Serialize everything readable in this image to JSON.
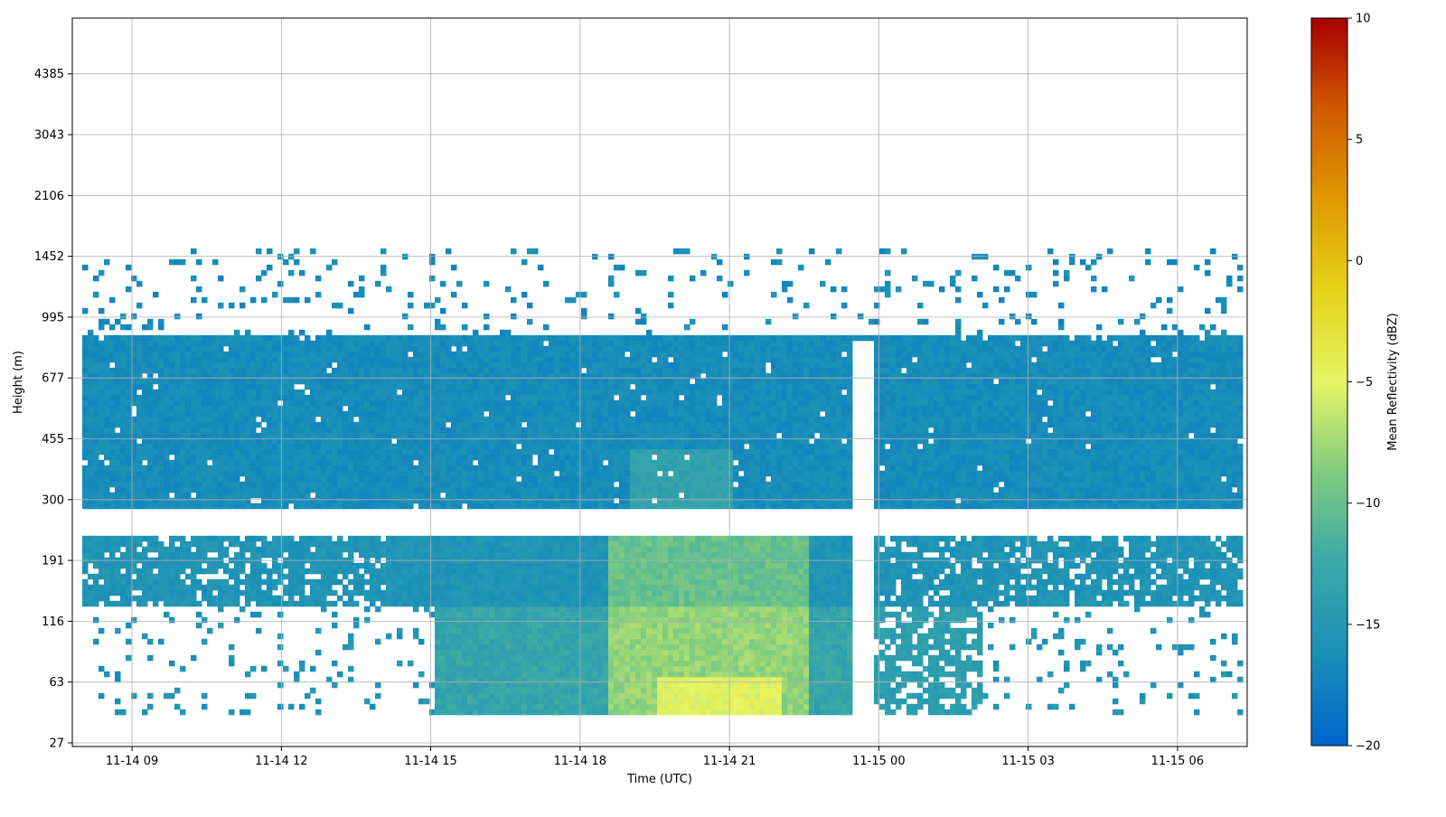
{
  "chart_data": {
    "type": "heatmap",
    "title": "",
    "xlabel": "Time (UTC)",
    "ylabel": "Height (m)",
    "x_ticks": [
      "11-14 09",
      "11-14 12",
      "11-14 15",
      "11-14 18",
      "11-14 21",
      "11-15 00",
      "11-15 03",
      "11-15 06"
    ],
    "x_tick_hours": [
      9,
      12,
      15,
      18,
      21,
      24,
      27,
      30
    ],
    "xlim_hours": [
      7.8,
      31.4
    ],
    "y_ticks": [
      "27",
      "63",
      "116",
      "191",
      "300",
      "455",
      "677",
      "995",
      "1452",
      "2106",
      "3043",
      "4385"
    ],
    "y_tick_values": [
      27,
      63,
      116,
      191,
      300,
      455,
      677,
      995,
      1452,
      2106,
      3043,
      4385
    ],
    "colorbar": {
      "label": "Mean Reflectivity (dBZ)",
      "min": -20,
      "max": 10,
      "ticks": [
        "10",
        "5",
        "0",
        "−5",
        "−10",
        "−15",
        "−20"
      ],
      "tick_values": [
        10,
        5,
        0,
        -5,
        -10,
        -15,
        -20
      ],
      "colormap_stops": [
        "#0066cc",
        "#1a8fb8",
        "#3aa8a8",
        "#7fcc7f",
        "#e6f564",
        "#e6d21a",
        "#e09a00",
        "#d05a00",
        "#a80000"
      ]
    },
    "features": [
      {
        "layer": "upper cloud",
        "height_range_m": [
          300,
          850
        ],
        "time_range_hours": [
          8.0,
          31.3
        ],
        "typical_dbz": -16
      },
      {
        "layer": "low cloud",
        "height_range_m": [
          130,
          220
        ],
        "time_range_hours": [
          8.0,
          31.3
        ],
        "typical_dbz": -15
      },
      {
        "layer": "precipitation core",
        "height_range_m": [
          40,
          200
        ],
        "time_range_hours": [
          18.5,
          23.5
        ],
        "typical_dbz": -8
      },
      {
        "layer": "scattered tops",
        "height_range_m": [
          900,
          1500
        ],
        "time_range_hours": [
          8.0,
          31.3
        ],
        "typical_dbz": -16
      },
      {
        "layer": "data gap",
        "height_range_m": [
          27,
          850
        ],
        "time_range_hours": [
          23.4,
          23.8
        ],
        "typical_dbz": null
      }
    ],
    "grid": true
  }
}
